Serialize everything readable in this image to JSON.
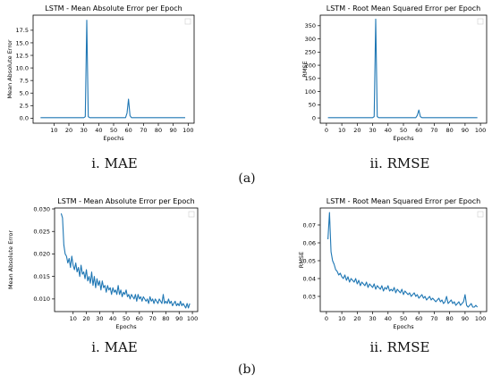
{
  "sections": [
    {
      "label": "(a)"
    },
    {
      "label": "(b)"
    }
  ],
  "line_color": "#1f77b4",
  "chart_data": [
    {
      "type": "line",
      "title": "LSTM -  Mean Absolute Error per Epoch",
      "xlabel": "Epochs",
      "ylabel": "Mean Absolute Error",
      "caption": "i. MAE",
      "xlim": [
        -4,
        104
      ],
      "ylim": [
        -1,
        20.5
      ],
      "xticks": [
        10,
        20,
        30,
        40,
        50,
        60,
        70,
        80,
        90,
        100
      ],
      "yticks": [
        0.0,
        2.5,
        5.0,
        7.5,
        10.0,
        12.5,
        15.0,
        17.5
      ],
      "ytick_format": 1,
      "legend": "empty box, top-right",
      "grid": false,
      "series": [
        {
          "x": [
            1,
            30,
            31,
            32,
            33,
            34,
            58,
            59,
            60,
            61,
            62,
            98
          ],
          "y": [
            0.1,
            0.1,
            0.3,
            19.5,
            0.3,
            0.1,
            0.1,
            1.0,
            3.8,
            0.5,
            0.1,
            0.1
          ]
        }
      ]
    },
    {
      "type": "line",
      "title": "LSTM - Root Mean Squared Error per Epoch",
      "xlabel": "Epochs",
      "ylabel": "RMSE",
      "caption": "ii. RMSE",
      "xlim": [
        -4,
        104
      ],
      "ylim": [
        -20,
        390
      ],
      "xticks": [
        0,
        10,
        20,
        30,
        40,
        50,
        60,
        70,
        80,
        90,
        100
      ],
      "yticks": [
        0,
        50,
        100,
        150,
        200,
        250,
        300,
        350
      ],
      "ytick_format": 0,
      "legend": "empty box, top-right",
      "grid": false,
      "series": [
        {
          "x": [
            1,
            30,
            31,
            32,
            33,
            34,
            58,
            59,
            60,
            61,
            62,
            98
          ],
          "y": [
            1,
            1,
            5,
            375,
            5,
            1,
            1,
            10,
            30,
            5,
            1,
            1
          ]
        }
      ]
    },
    {
      "type": "line",
      "title": "LSTM -  Mean Absolute Error per Epoch",
      "xlabel": "Epochs",
      "ylabel": "Mean Absolute Error",
      "caption": "i. MAE",
      "xlim": [
        -4,
        104
      ],
      "ylim": [
        0.0072,
        0.0302
      ],
      "xticks": [
        10,
        20,
        30,
        40,
        50,
        60,
        70,
        80,
        90,
        100
      ],
      "yticks": [
        0.01,
        0.015,
        0.02,
        0.025,
        0.03
      ],
      "ytick_format": 3,
      "legend": "empty box, top-right",
      "grid": false,
      "series": [
        {
          "x": [
            1,
            2,
            3,
            4,
            5,
            6,
            7,
            8,
            9,
            10,
            11,
            12,
            13,
            14,
            15,
            16,
            17,
            18,
            19,
            20,
            21,
            22,
            23,
            24,
            25,
            26,
            27,
            28,
            29,
            30,
            31,
            32,
            33,
            34,
            35,
            36,
            37,
            38,
            39,
            40,
            41,
            42,
            43,
            44,
            45,
            46,
            47,
            48,
            49,
            50,
            51,
            52,
            53,
            54,
            55,
            56,
            57,
            58,
            59,
            60,
            61,
            62,
            63,
            64,
            65,
            66,
            67,
            68,
            69,
            70,
            71,
            72,
            73,
            74,
            75,
            76,
            77,
            78,
            79,
            80,
            81,
            82,
            83,
            84,
            85,
            86,
            87,
            88,
            89,
            90,
            91,
            92,
            93,
            94,
            95,
            96,
            97,
            98
          ],
          "y": [
            0.029,
            0.028,
            0.022,
            0.02,
            0.0195,
            0.018,
            0.019,
            0.017,
            0.0195,
            0.0175,
            0.0165,
            0.018,
            0.016,
            0.017,
            0.015,
            0.0175,
            0.0155,
            0.016,
            0.0145,
            0.0165,
            0.014,
            0.015,
            0.0135,
            0.016,
            0.013,
            0.015,
            0.0125,
            0.0145,
            0.013,
            0.014,
            0.012,
            0.014,
            0.0125,
            0.013,
            0.0115,
            0.013,
            0.012,
            0.0125,
            0.011,
            0.0125,
            0.0115,
            0.012,
            0.011,
            0.013,
            0.011,
            0.012,
            0.0105,
            0.0115,
            0.011,
            0.012,
            0.0105,
            0.011,
            0.01,
            0.011,
            0.0105,
            0.01,
            0.011,
            0.0095,
            0.011,
            0.01,
            0.0105,
            0.0095,
            0.0105,
            0.01,
            0.0095,
            0.01,
            0.009,
            0.0105,
            0.0095,
            0.01,
            0.009,
            0.01,
            0.0095,
            0.009,
            0.01,
            0.0095,
            0.009,
            0.011,
            0.009,
            0.0095,
            0.009,
            0.01,
            0.009,
            0.0095,
            0.0085,
            0.009,
            0.0095,
            0.0085,
            0.009,
            0.0085,
            0.0095,
            0.0085,
            0.009,
            0.0085,
            0.008,
            0.009,
            0.008,
            0.009
          ]
        }
      ]
    },
    {
      "type": "line",
      "title": "LSTM - Root Mean Squared Error per Epoch",
      "xlabel": "Epochs",
      "ylabel": "RMSE",
      "caption": "ii. RMSE",
      "xlim": [
        -4,
        104
      ],
      "ylim": [
        0.0215,
        0.0795
      ],
      "xticks": [
        0,
        10,
        20,
        30,
        40,
        50,
        60,
        70,
        80,
        90,
        100
      ],
      "yticks": [
        0.03,
        0.04,
        0.05,
        0.06,
        0.07
      ],
      "ytick_format": 2,
      "legend": "empty box, top-right",
      "grid": false,
      "series": [
        {
          "x": [
            1,
            2,
            3,
            4,
            5,
            6,
            7,
            8,
            9,
            10,
            11,
            12,
            13,
            14,
            15,
            16,
            17,
            18,
            19,
            20,
            21,
            22,
            23,
            24,
            25,
            26,
            27,
            28,
            29,
            30,
            31,
            32,
            33,
            34,
            35,
            36,
            37,
            38,
            39,
            40,
            41,
            42,
            43,
            44,
            45,
            46,
            47,
            48,
            49,
            50,
            51,
            52,
            53,
            54,
            55,
            56,
            57,
            58,
            59,
            60,
            61,
            62,
            63,
            64,
            65,
            66,
            67,
            68,
            69,
            70,
            71,
            72,
            73,
            74,
            75,
            76,
            77,
            78,
            79,
            80,
            81,
            82,
            83,
            84,
            85,
            86,
            87,
            88,
            89,
            90,
            91,
            92,
            93,
            94,
            95,
            96,
            97,
            98
          ],
          "y": [
            0.062,
            0.077,
            0.055,
            0.05,
            0.048,
            0.045,
            0.044,
            0.042,
            0.043,
            0.041,
            0.04,
            0.042,
            0.039,
            0.041,
            0.038,
            0.04,
            0.039,
            0.038,
            0.04,
            0.037,
            0.039,
            0.036,
            0.038,
            0.037,
            0.036,
            0.038,
            0.035,
            0.037,
            0.036,
            0.035,
            0.037,
            0.034,
            0.036,
            0.035,
            0.034,
            0.036,
            0.033,
            0.035,
            0.034,
            0.036,
            0.033,
            0.034,
            0.033,
            0.035,
            0.032,
            0.034,
            0.033,
            0.032,
            0.034,
            0.031,
            0.033,
            0.032,
            0.031,
            0.032,
            0.03,
            0.031,
            0.032,
            0.03,
            0.031,
            0.029,
            0.03,
            0.031,
            0.029,
            0.03,
            0.028,
            0.029,
            0.03,
            0.028,
            0.029,
            0.028,
            0.027,
            0.028,
            0.029,
            0.027,
            0.028,
            0.026,
            0.027,
            0.03,
            0.026,
            0.027,
            0.028,
            0.026,
            0.027,
            0.025,
            0.026,
            0.027,
            0.025,
            0.026,
            0.027,
            0.031,
            0.025,
            0.024,
            0.025,
            0.026,
            0.024,
            0.024,
            0.025,
            0.024
          ]
        }
      ]
    }
  ]
}
